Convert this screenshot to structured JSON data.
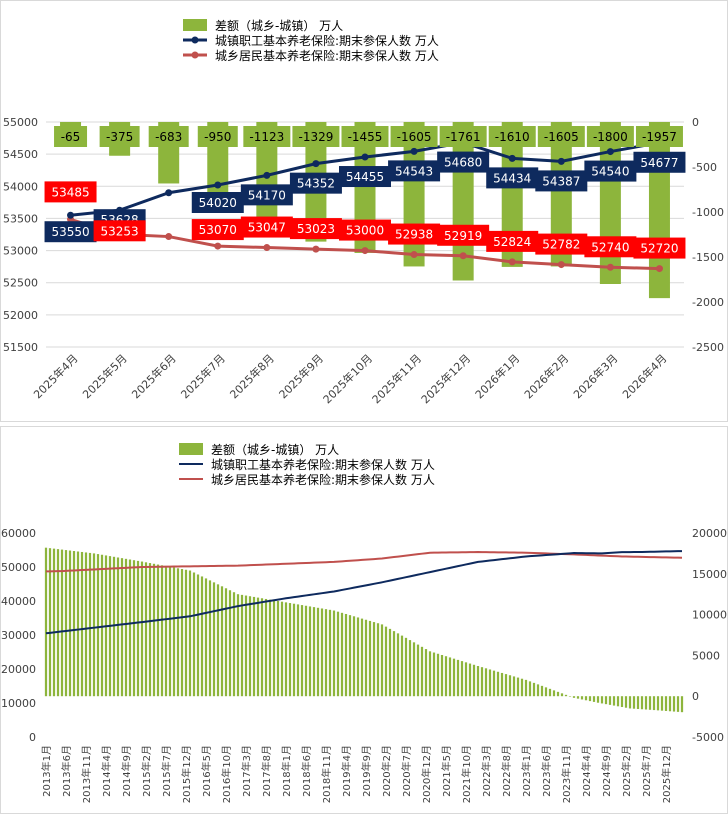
{
  "colors": {
    "diff": "#8DB53C",
    "urban": "#0E2A5E",
    "rural": "#C0504D",
    "rural_label": "#FF0000",
    "grid": "#D9D9D9",
    "axis_text": "#404040"
  },
  "chart_data": [
    {
      "type": "bar+line",
      "categories": [
        "2025年4月",
        "2025年5月",
        "2025年6月",
        "2025年7月",
        "2025年8月",
        "2025年9月",
        "2025年10月",
        "2025年11月",
        "2025年12月",
        "2026年1月",
        "2026年2月",
        "2026年3月",
        "2026年4月"
      ],
      "series": [
        {
          "name": "差额（城乡-城镇） 万人",
          "type": "bar",
          "axis": "right",
          "values": [
            -65,
            -375,
            -683,
            -950,
            -1123,
            -1329,
            -1455,
            -1605,
            -1761,
            -1610,
            -1605,
            -1800,
            -1957
          ]
        },
        {
          "name": "城镇职工基本养老保险:期末参保人数 万人",
          "type": "line",
          "axis": "left",
          "values": [
            53550,
            53628,
            53900,
            54020,
            54170,
            54352,
            54455,
            54543,
            54680,
            54434,
            54387,
            54540,
            54677
          ]
        },
        {
          "name": "城乡居民基本养老保险:期末参保人数 万人",
          "type": "line",
          "axis": "left",
          "values": [
            53485,
            53253,
            53218,
            53070,
            53047,
            53023,
            53000,
            52938,
            52919,
            52824,
            52782,
            52740,
            52720
          ]
        }
      ],
      "label_points": [
        0,
        1,
        3,
        4,
        5,
        6,
        7,
        8,
        9,
        10,
        11,
        12
      ],
      "left_axis": {
        "ylim": [
          51500,
          55000
        ],
        "ticks": [
          51500,
          52000,
          52500,
          53000,
          53500,
          54000,
          54500,
          55000
        ]
      },
      "right_axis": {
        "ylim": [
          -2500,
          0
        ],
        "ticks": [
          -2500,
          -2000,
          -1500,
          -1000,
          -500,
          0
        ]
      }
    },
    {
      "type": "bar+line",
      "series_names": [
        "差额（城乡-城镇） 万人",
        "城镇职工基本养老保险:期末参保人数 万人",
        "城乡居民基本养老保险:期末参保人数 万人"
      ],
      "x_tick_labels": [
        "2013年1月",
        "2013年6月",
        "2013年11月",
        "2014年4月",
        "2014年9月",
        "2015年2月",
        "2015年7月",
        "2015年12月",
        "2016年5月",
        "2016年10月",
        "2017年3月",
        "2017年8月",
        "2018年1月",
        "2018年6月",
        "2018年11月",
        "2019年4月",
        "2019年9月",
        "2020年2月",
        "2020年7月",
        "2020年12月",
        "2021年5月",
        "2021年10月",
        "2022年3月",
        "2022年8月",
        "2023年1月",
        "2023年6月",
        "2023年11月",
        "2024年4月",
        "2024年9月",
        "2025年2月",
        "2025年7月",
        "2025年12月"
      ],
      "start_month": "2013-01",
      "end_month": "2026-04",
      "urban_anchors": [
        [
          0,
          30500
        ],
        [
          24,
          33800
        ],
        [
          36,
          35500
        ],
        [
          48,
          38500
        ],
        [
          60,
          40800
        ],
        [
          72,
          42800
        ],
        [
          84,
          45500
        ],
        [
          96,
          48500
        ],
        [
          108,
          51500
        ],
        [
          120,
          53100
        ],
        [
          132,
          54100
        ],
        [
          139,
          54000
        ],
        [
          144,
          54380
        ],
        [
          148,
          54400
        ],
        [
          159,
          54680
        ]
      ],
      "rural_anchors": [
        [
          0,
          48700
        ],
        [
          4,
          48800
        ],
        [
          24,
          50000
        ],
        [
          48,
          50400
        ],
        [
          72,
          51500
        ],
        [
          84,
          52500
        ],
        [
          96,
          54200
        ],
        [
          108,
          54400
        ],
        [
          120,
          54200
        ],
        [
          132,
          53700
        ],
        [
          144,
          53100
        ],
        [
          159,
          52720
        ]
      ],
      "diff_anchors": [
        [
          0,
          18200
        ],
        [
          12,
          17500
        ],
        [
          24,
          16500
        ],
        [
          36,
          15400
        ],
        [
          48,
          12500
        ],
        [
          60,
          11500
        ],
        [
          72,
          10500
        ],
        [
          84,
          8800
        ],
        [
          96,
          5500
        ],
        [
          108,
          3700
        ],
        [
          120,
          2000
        ],
        [
          132,
          -200
        ],
        [
          138,
          -800
        ],
        [
          146,
          -1500
        ],
        [
          152,
          -1700
        ],
        [
          159,
          -1957
        ]
      ],
      "left_axis": {
        "ylim": [
          0,
          60000
        ],
        "ticks": [
          0,
          10000,
          20000,
          30000,
          40000,
          50000,
          60000
        ]
      },
      "right_axis": {
        "ylim": [
          -5000,
          20000
        ],
        "ticks": [
          -5000,
          0,
          5000,
          10000,
          15000,
          20000
        ]
      }
    }
  ]
}
